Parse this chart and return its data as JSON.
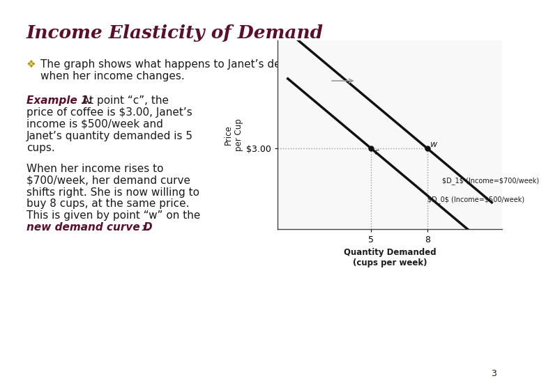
{
  "title": "Income Elasticity of Demand",
  "title_color": "#5C0F2A",
  "bg_color": "#FFFFFF",
  "footer_top_color": "#D4900A",
  "footer_bottom_color": "#B85C1A",
  "bullet_color": "#B8960A",
  "text_color": "#1A1A1A",
  "chart_border_color": "#5C0F2A",
  "chart_bg": "#F8F8F8",
  "line_color": "#111111",
  "dashed_color": "#999999",
  "point_color": "#111111",
  "arrow_color": "#999999",
  "page_number": "3",
  "price_label": "$3.00",
  "xlabel_line1": "Quantity Demanded",
  "xlabel_line2": "(cups per week)",
  "ylabel_line1": "Price",
  "ylabel_line2": "per Cup",
  "D0_label": "D₀ (Income=$500/week)",
  "D1_label": "D₁ (Income=$700/week)"
}
